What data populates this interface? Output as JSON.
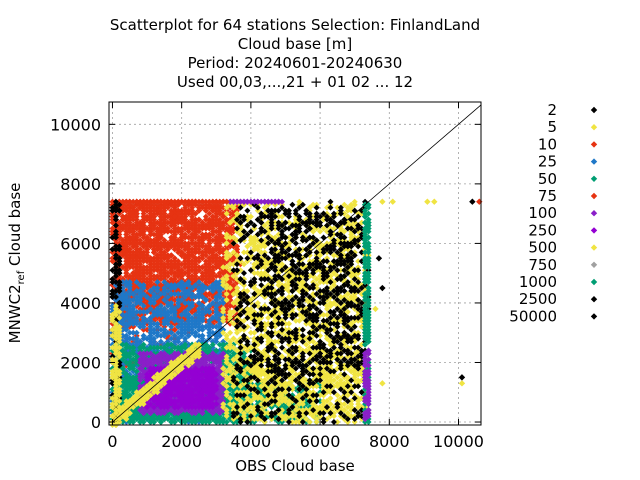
{
  "chart_data": {
    "type": "scatter",
    "title_lines": [
      "Scatterplot for   64 stations Selection: FinlandLand",
      "Cloud base [m]",
      "Period: 20240601-20240630",
      "Used 00,03,...,21 + 01 02 ... 12"
    ],
    "xlabel": "OBS Cloud base",
    "ylabel": "MNWC2_ref Cloud base",
    "ylabel_main": "MNWC2",
    "ylabel_sub": "ref",
    "ylabel_tail": " Cloud base",
    "xlim": [
      -100,
      10650
    ],
    "ylim": [
      -100,
      10750
    ],
    "x_ticks": [
      0,
      2000,
      4000,
      6000,
      8000,
      10000
    ],
    "y_ticks": [
      0,
      2000,
      4000,
      6000,
      8000,
      10000
    ],
    "x_tick_labels": [
      "0",
      "2000",
      "4000",
      "6000",
      "8000",
      "10000"
    ],
    "y_tick_labels": [
      "0",
      "2000",
      "4000",
      "6000",
      "8000",
      "10000"
    ],
    "grid": true,
    "diagonal": true,
    "legend_position": "right",
    "series": [
      {
        "name": "2",
        "color": "#000000"
      },
      {
        "name": "5",
        "color": "#f0e442"
      },
      {
        "name": "10",
        "color": "#e63312"
      },
      {
        "name": "25",
        "color": "#1f78c8"
      },
      {
        "name": "50",
        "color": "#009e73"
      },
      {
        "name": "75",
        "color": "#e63312"
      },
      {
        "name": "100",
        "color": "#8a1fc8"
      },
      {
        "name": "250",
        "color": "#9400d3"
      },
      {
        "name": "500",
        "color": "#f0e442"
      },
      {
        "name": "750",
        "color": "#a0a0a0"
      },
      {
        "name": "1000",
        "color": "#009e73"
      },
      {
        "name": "2500",
        "color": "#000000"
      },
      {
        "name": "50000",
        "color": "#000000"
      }
    ],
    "points": [
      {
        "series": 8,
        "x": 7800,
        "y": 7400
      },
      {
        "series": 8,
        "x": 8100,
        "y": 7400
      },
      {
        "series": 8,
        "x": 9100,
        "y": 7400
      },
      {
        "series": 8,
        "x": 9300,
        "y": 7400
      },
      {
        "series": 0,
        "x": 10400,
        "y": 7400
      },
      {
        "series": 2,
        "x": 10600,
        "y": 7400
      },
      {
        "series": 0,
        "x": 7800,
        "y": 4500
      },
      {
        "series": 8,
        "x": 7800,
        "y": 1300
      },
      {
        "series": 8,
        "x": 10100,
        "y": 1300
      },
      {
        "series": 0,
        "x": 10100,
        "y": 1500
      },
      {
        "series": 8,
        "x": 7600,
        "y": 3800
      },
      {
        "series": 0,
        "x": 7700,
        "y": 5500
      }
    ],
    "regions": [
      {
        "series": 2,
        "x": [
          0,
          3700
        ],
        "y": [
          3300,
          7400
        ],
        "count": 1400,
        "seed": 11
      },
      {
        "series": 2,
        "x": [
          0,
          2200
        ],
        "y": [
          1800,
          7400
        ],
        "count": 500,
        "seed": 12
      },
      {
        "series": 5,
        "x": [
          0,
          3500
        ],
        "y": [
          3800,
          7400
        ],
        "count": 500,
        "seed": 13
      },
      {
        "series": 3,
        "x": [
          0,
          3200
        ],
        "y": [
          0,
          4700
        ],
        "count": 1300,
        "seed": 14
      },
      {
        "series": 4,
        "x": [
          0,
          4000
        ],
        "y": [
          0,
          2600
        ],
        "count": 1100,
        "seed": 15
      },
      {
        "series": 10,
        "x": [
          0,
          6000
        ],
        "y": [
          0,
          1400
        ],
        "count": 700,
        "seed": 16
      },
      {
        "series": 6,
        "x": [
          800,
          3200
        ],
        "y": [
          300,
          2300
        ],
        "count": 800,
        "seed": 17
      },
      {
        "series": 7,
        "x": [
          1000,
          3000
        ],
        "y": [
          500,
          1800
        ],
        "count": 500,
        "seed": 18
      },
      {
        "series": 8,
        "x": [
          3200,
          7400
        ],
        "y": [
          0,
          7400
        ],
        "count": 1300,
        "seed": 19
      },
      {
        "series": 1,
        "x": [
          4000,
          7400
        ],
        "y": [
          0,
          6200
        ],
        "count": 600,
        "seed": 20
      },
      {
        "series": 11,
        "x": [
          3500,
          7400
        ],
        "y": [
          0,
          7400
        ],
        "count": 700,
        "seed": 21
      },
      {
        "series": 0,
        "x": [
          4500,
          7300
        ],
        "y": [
          1500,
          7000
        ],
        "count": 300,
        "seed": 22
      },
      {
        "series": 9,
        "x": [
          0,
          3800
        ],
        "y": [
          7350,
          7420
        ],
        "count": 40,
        "seed": 23
      },
      {
        "series": 6,
        "x": [
          3300,
          4900
        ],
        "y": [
          7380,
          7420
        ],
        "count": 60,
        "seed": 24
      },
      {
        "series": 5,
        "x": [
          0,
          3300
        ],
        "y": [
          7380,
          7420
        ],
        "count": 120,
        "seed": 25
      },
      {
        "series": 10,
        "x": [
          7300,
          7400
        ],
        "y": [
          0,
          7400
        ],
        "count": 200,
        "seed": 26
      },
      {
        "series": 6,
        "x": [
          7300,
          7400
        ],
        "y": [
          0,
          2400
        ],
        "count": 60,
        "seed": 27
      },
      {
        "series": 1,
        "x": [
          0,
          2500
        ],
        "y": [
          0,
          2000
        ],
        "count": 300,
        "seed": 28,
        "diag": true
      },
      {
        "series": 0,
        "x": [
          0,
          200
        ],
        "y": [
          0,
          7400
        ],
        "count": 120,
        "seed": 29
      },
      {
        "series": 8,
        "x": [
          0,
          200
        ],
        "y": [
          0,
          4000
        ],
        "count": 100,
        "seed": 30
      }
    ]
  }
}
